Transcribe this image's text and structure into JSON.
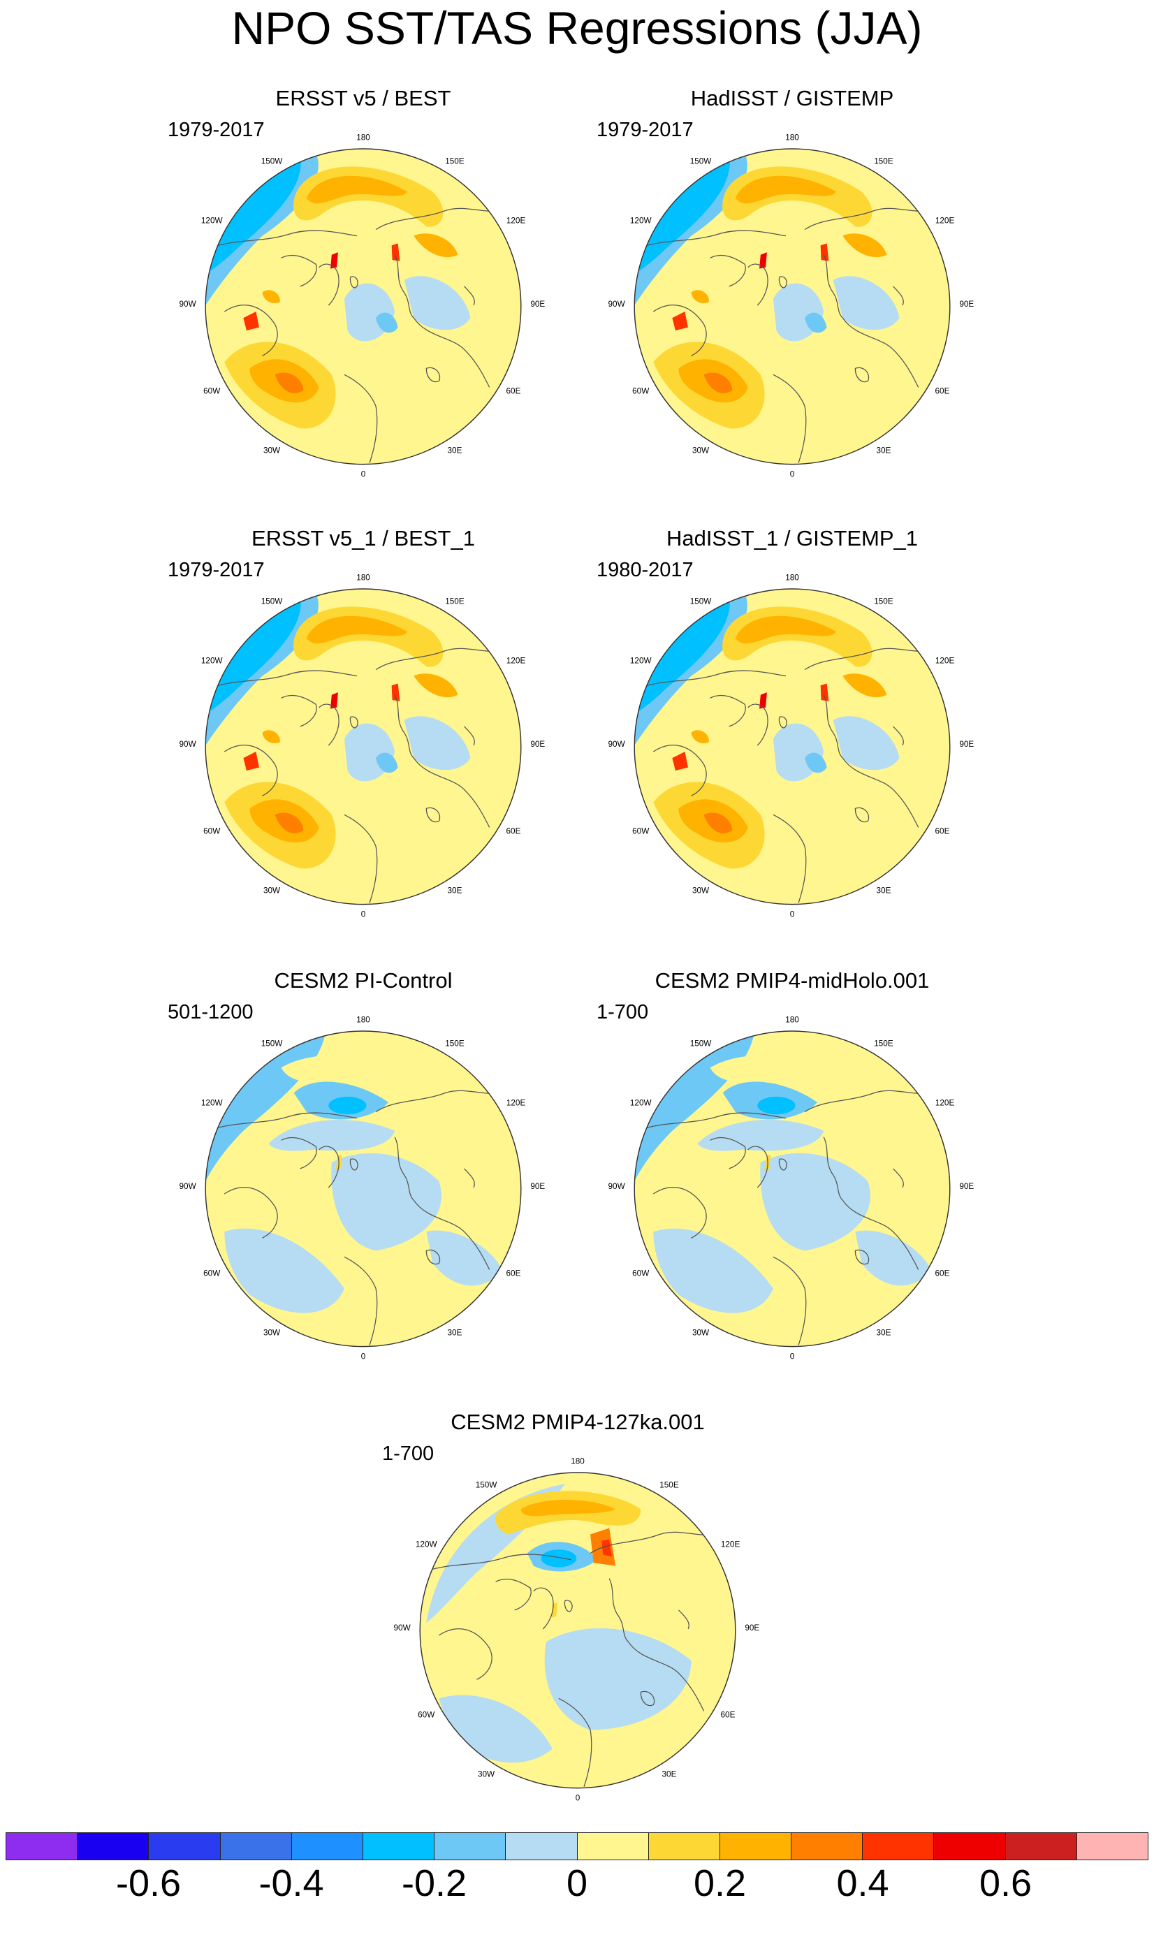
{
  "title": "NPO SST/TAS Regressions (JJA)",
  "panels": [
    {
      "title": "ERSST v5 / BEST",
      "period": "1979-2017",
      "style": "obs"
    },
    {
      "title": "HadISST / GISTEMP",
      "period": "1979-2017",
      "style": "obs"
    },
    {
      "title": "ERSST v5_1 / BEST_1",
      "period": "1979-2017",
      "style": "obs"
    },
    {
      "title": "HadISST_1 / GISTEMP_1",
      "period": "1980-2017",
      "style": "obs"
    },
    {
      "title": "CESM2 PI-Control",
      "period": "501-1200",
      "style": "model"
    },
    {
      "title": "CESM2 PMIP4-midHolo.001",
      "period": "1-700",
      "style": "model"
    },
    {
      "title": "CESM2 PMIP4-127ka.001",
      "period": "1-700",
      "style": "model127"
    }
  ],
  "longitude_labels": [
    "180",
    "150E",
    "120E",
    "90E",
    "60E",
    "30E",
    "0",
    "30W",
    "60W",
    "90W",
    "120W",
    "150W"
  ],
  "colorbar": {
    "colors": [
      "#8e2cf0",
      "#1a00f0",
      "#2a3cf0",
      "#3a72ea",
      "#1e90ff",
      "#00c0ff",
      "#6ec8f5",
      "#b5dcf2",
      "#fff68f",
      "#fdd835",
      "#ffb300",
      "#ff7f00",
      "#ff3300",
      "#ee0000",
      "#cc2020",
      "#ffb4b4"
    ],
    "tick_labels": [
      "-0.6",
      "-0.4",
      "-0.2",
      "0",
      "0.2",
      "0.4",
      "0.6"
    ]
  }
}
